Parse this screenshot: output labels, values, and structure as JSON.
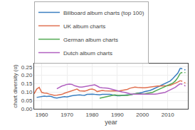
{
  "chart_data": {
    "type": "line",
    "xlabel": "year",
    "ylabel": "chart diversity (α)",
    "xlim": [
      1957,
      2018
    ],
    "ylim": [
      0,
      0.27
    ],
    "xticks": [
      1960,
      1970,
      1980,
      1990,
      2000,
      2010
    ],
    "yticks": [
      {
        "value": 0,
        "label": "0.00"
      },
      0.05,
      {
        "value": 0.1,
        "label": "0.10"
      },
      0.15,
      {
        "value": 0.2,
        "label": "0.20"
      },
      0.25
    ],
    "grid": true,
    "legend": "upper left",
    "series": [
      {
        "name": "Billboard album charts (top 100)",
        "color": "#3a7ec0",
        "line_style": "solid",
        "x": [
          1958,
          1959,
          1960,
          1961,
          1962,
          1963,
          1964,
          1965,
          1966,
          1967,
          1968,
          1969,
          1970,
          1971,
          1972,
          1973,
          1974,
          1975,
          1976,
          1977,
          1978,
          1979,
          1980,
          1981,
          1982,
          1983,
          1984,
          1985,
          1986,
          1987,
          1988,
          1989,
          1990,
          1991,
          1992,
          1993,
          1994,
          1995,
          1996,
          1997,
          1998,
          1999,
          2000,
          2001,
          2002,
          2003,
          2004,
          2005,
          2006,
          2007,
          2008,
          2009,
          2010,
          2011,
          2012,
          2013,
          2014,
          2015
        ],
        "values": [
          0.068,
          0.071,
          0.073,
          0.076,
          0.074,
          0.076,
          0.073,
          0.066,
          0.064,
          0.067,
          0.071,
          0.073,
          0.071,
          0.076,
          0.078,
          0.08,
          0.083,
          0.083,
          0.081,
          0.08,
          0.086,
          0.088,
          0.088,
          0.086,
          0.083,
          0.083,
          0.086,
          0.086,
          0.088,
          0.086,
          0.083,
          0.08,
          0.078,
          0.078,
          0.08,
          0.083,
          0.083,
          0.083,
          0.086,
          0.088,
          0.09,
          0.093,
          0.098,
          0.103,
          0.106,
          0.11,
          0.116,
          0.123,
          0.128,
          0.135,
          0.142,
          0.15,
          0.158,
          0.166,
          0.18,
          0.196,
          0.213,
          0.243
        ]
      },
      {
        "color": "#3a7ec0",
        "line_style": "dotted",
        "x": [
          2015,
          2016,
          2017
        ],
        "values": [
          0.243,
          0.238,
          0.232
        ]
      },
      {
        "name": "UK album charts",
        "color": "#e07050",
        "line_style": "solid",
        "x": [
          1957,
          1958,
          1959,
          1960,
          1961,
          1962,
          1963,
          1964,
          1965,
          1966,
          1967,
          1968,
          1969,
          1970,
          1971,
          1972,
          1973,
          1974,
          1975,
          1976,
          1977,
          1978,
          1979,
          1980,
          1981,
          1982,
          1983,
          1984,
          1985,
          1986,
          1987,
          1988,
          1989,
          1990,
          1991,
          1992,
          1993,
          1994,
          1995,
          1996,
          1997,
          1998,
          1999,
          2000,
          2001,
          2002,
          2003,
          2004,
          2005,
          2006,
          2007,
          2008,
          2009,
          2010,
          2011,
          2012,
          2013,
          2014,
          2015
        ],
        "values": [
          0.09,
          0.118,
          0.128,
          0.098,
          0.094,
          0.093,
          0.088,
          0.083,
          0.08,
          0.081,
          0.083,
          0.086,
          0.093,
          0.098,
          0.106,
          0.11,
          0.116,
          0.118,
          0.108,
          0.106,
          0.106,
          0.11,
          0.116,
          0.118,
          0.113,
          0.103,
          0.106,
          0.11,
          0.108,
          0.106,
          0.106,
          0.108,
          0.106,
          0.106,
          0.108,
          0.11,
          0.113,
          0.116,
          0.123,
          0.128,
          0.13,
          0.128,
          0.126,
          0.126,
          0.126,
          0.128,
          0.13,
          0.133,
          0.136,
          0.136,
          0.136,
          0.136,
          0.136,
          0.138,
          0.14,
          0.146,
          0.153,
          0.16,
          0.168
        ]
      },
      {
        "color": "#e07050",
        "line_style": "dotted",
        "x": [
          2015,
          2016,
          2017
        ],
        "values": [
          0.168,
          0.163,
          0.153
        ]
      },
      {
        "name": "German album charts",
        "color": "#50a850",
        "line_style": "solid",
        "x": [
          1983,
          1984,
          1985,
          1986,
          1987,
          1988,
          1989,
          1990,
          1991,
          1992,
          1993,
          1994,
          1995,
          1996,
          1997,
          1998,
          1999,
          2000,
          2001,
          2002,
          2003,
          2004,
          2005,
          2006,
          2007,
          2008,
          2009,
          2010,
          2011,
          2012,
          2013,
          2014,
          2015
        ],
        "values": [
          0.063,
          0.066,
          0.07,
          0.073,
          0.076,
          0.08,
          0.083,
          0.08,
          0.08,
          0.078,
          0.078,
          0.08,
          0.083,
          0.088,
          0.09,
          0.093,
          0.09,
          0.088,
          0.09,
          0.093,
          0.096,
          0.098,
          0.106,
          0.113,
          0.12,
          0.126,
          0.133,
          0.138,
          0.146,
          0.153,
          0.166,
          0.186,
          0.213
        ]
      },
      {
        "color": "#50a850",
        "line_style": "dotted",
        "x": [
          2015,
          2016,
          2017
        ],
        "values": [
          0.213,
          0.218,
          0.216
        ]
      },
      {
        "name": "Dutch album charts",
        "color": "#b060c0",
        "line_style": "solid",
        "x": [
          1966,
          1967,
          1968,
          1969,
          1970,
          1971,
          1972,
          1973,
          1974,
          1975,
          1976,
          1977,
          1978,
          1979,
          1980,
          1981,
          1982,
          1983,
          1984,
          1985,
          1986,
          1987,
          1988,
          1989,
          1990,
          1991,
          1992,
          1993,
          1994,
          1995,
          1996,
          1997,
          1998,
          1999,
          2000,
          2001,
          2002,
          2003,
          2004,
          2005,
          2006,
          2007,
          2008,
          2009,
          2010,
          2011,
          2012,
          2013,
          2014,
          2015
        ],
        "values": [
          0.12,
          0.128,
          0.136,
          0.14,
          0.146,
          0.148,
          0.146,
          0.138,
          0.133,
          0.13,
          0.13,
          0.133,
          0.136,
          0.138,
          0.14,
          0.143,
          0.136,
          0.128,
          0.126,
          0.126,
          0.123,
          0.12,
          0.116,
          0.11,
          0.106,
          0.103,
          0.1,
          0.098,
          0.093,
          0.09,
          0.088,
          0.088,
          0.088,
          0.086,
          0.086,
          0.086,
          0.086,
          0.086,
          0.086,
          0.088,
          0.09,
          0.093,
          0.096,
          0.098,
          0.106,
          0.113,
          0.12,
          0.128,
          0.14,
          0.15
        ]
      },
      {
        "color": "#b060c0",
        "line_style": "dotted",
        "x": [
          2015,
          2016,
          2017
        ],
        "values": [
          0.15,
          0.146,
          0.136
        ]
      }
    ]
  }
}
